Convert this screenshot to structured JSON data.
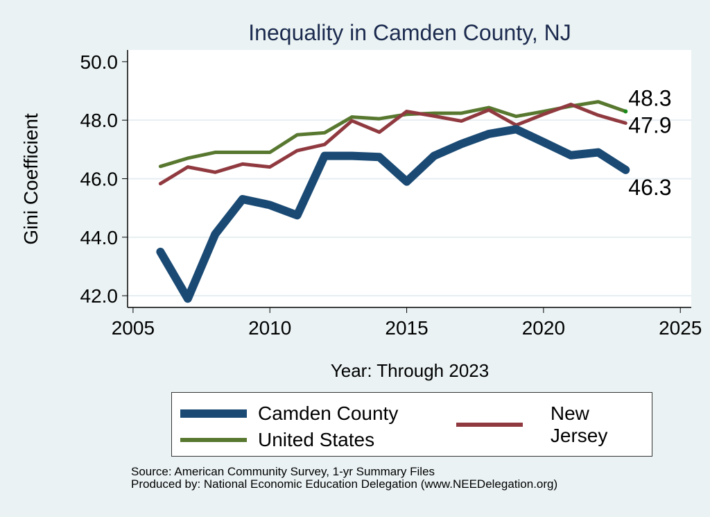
{
  "chart_data": {
    "type": "line",
    "title": "Inequality in Camden County, NJ",
    "xlabel": "Year: Through 2023",
    "ylabel": "Gini Coefficient",
    "xlim": [
      2004.8,
      2025.4
    ],
    "ylim": [
      41.6,
      50.4
    ],
    "xticks": [
      2005,
      2010,
      2015,
      2020,
      2025
    ],
    "xtick_labels": [
      "2005",
      "2010",
      "2015",
      "2020",
      "2025"
    ],
    "yticks": [
      42,
      44,
      46,
      48,
      50
    ],
    "ytick_labels": [
      "42.0",
      "44.0",
      "46.0",
      "48.0",
      "50.0"
    ],
    "grid": true,
    "legend_position": "bottom",
    "x": [
      2006,
      2007,
      2008,
      2009,
      2010,
      2011,
      2012,
      2013,
      2014,
      2015,
      2016,
      2017,
      2018,
      2019,
      2020,
      2021,
      2022,
      2023
    ],
    "series": [
      {
        "name": "Camden County",
        "color": "#1a4a74",
        "values": [
          43.5,
          41.9,
          44.1,
          45.3,
          45.1,
          44.75,
          46.78,
          46.78,
          46.74,
          45.9,
          46.78,
          47.19,
          47.53,
          47.69,
          47.25,
          46.8,
          46.9,
          46.3
        ],
        "end_label": "46.3"
      },
      {
        "name": "New Jersey",
        "color": "#903a40",
        "values": [
          45.83,
          46.4,
          46.22,
          46.5,
          46.4,
          46.96,
          47.17,
          47.98,
          47.59,
          48.3,
          48.14,
          47.97,
          48.35,
          47.83,
          48.2,
          48.54,
          48.17,
          47.9
        ],
        "end_label": "47.9"
      },
      {
        "name": "United States",
        "color": "#587830",
        "values": [
          46.42,
          46.7,
          46.9,
          46.9,
          46.9,
          47.5,
          47.57,
          48.11,
          48.05,
          48.2,
          48.24,
          48.24,
          48.43,
          48.13,
          48.3,
          48.48,
          48.63,
          48.3
        ],
        "end_label": "48.3"
      }
    ]
  },
  "footer": {
    "source": "Source: American Community Survey, 1-yr Summary Files",
    "produced_by": "Produced by: National Economic Education Delegation (www.NEEDelegation.org)"
  }
}
